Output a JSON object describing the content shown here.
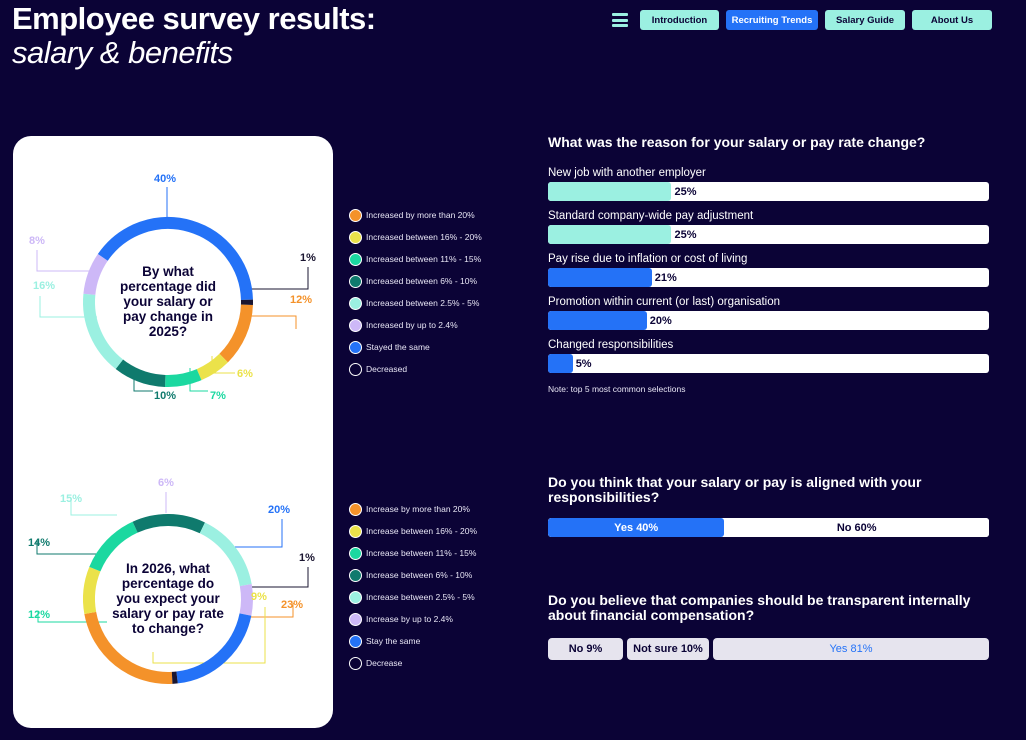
{
  "header": {
    "title_line1": "Employee survey results:",
    "title_line2": "salary & benefits"
  },
  "nav": {
    "menu_icon": "hamburger-menu-icon",
    "items": [
      {
        "label": "Introduction",
        "active": false
      },
      {
        "label": "Recruiting Trends",
        "active": true
      },
      {
        "label": "Salary Guide",
        "active": false
      },
      {
        "label": "About Us",
        "active": false
      }
    ]
  },
  "colors": {
    "background": "#0b0336",
    "accent_blue": "#2472f7",
    "accent_teal": "#9bf0e1",
    "orange": "#f4922a",
    "yellow": "#ebe24a",
    "green": "#1bd8a0",
    "dark_teal": "#0f7a6d",
    "light_teal": "#9bf0e1",
    "lavender": "#cdb8f7",
    "blue": "#2472f7",
    "navy": "#1a1530"
  },
  "chart_data": [
    {
      "type": "pie",
      "variant": "donut",
      "title": "By what percentage did your salary or pay change in 2025?",
      "categories": [
        "Increased by more than 20%",
        "Increased between 16% - 20%",
        "Increased between 11% - 15%",
        "Increased between 6% - 10%",
        "Increased between 2.5% - 5%",
        "Increased by up to 2.4%",
        "Stayed the same",
        "Decreased"
      ],
      "values": [
        12,
        6,
        7,
        10,
        16,
        8,
        40,
        1
      ],
      "data_labels": [
        "12%",
        "6%",
        "7%",
        "10%",
        "16%",
        "8%",
        "40%",
        "1%"
      ],
      "colors": [
        "#f4922a",
        "#ebe24a",
        "#1bd8a0",
        "#0f7a6d",
        "#9bf0e1",
        "#cdb8f7",
        "#2472f7",
        "#1a1530"
      ],
      "legend": "right"
    },
    {
      "type": "pie",
      "variant": "donut",
      "title": "In 2026, what percentage do you expect your salary or pay rate to change?",
      "categories": [
        "Increase by more than 20%",
        "Increase between 16% - 20%",
        "Increase between 11% - 15%",
        "Increase between 6% - 10%",
        "Increase between 2.5% - 5%",
        "Increase by up to 2.4%",
        "Stay the same",
        "Decrease"
      ],
      "values": [
        23,
        9,
        12,
        14,
        15,
        6,
        20,
        1
      ],
      "data_labels": [
        "23%",
        "9%",
        "12%",
        "14%",
        "15%",
        "6%",
        "20%",
        "1%"
      ],
      "colors": [
        "#f4922a",
        "#ebe24a",
        "#1bd8a0",
        "#0f7a6d",
        "#9bf0e1",
        "#cdb8f7",
        "#2472f7",
        "#1a1530"
      ],
      "legend": "right"
    },
    {
      "type": "bar",
      "orientation": "horizontal",
      "title": "What was the reason for your salary or pay rate change?",
      "categories": [
        "New job with another employer",
        "Standard company-wide pay adjustment",
        "Pay rise due to inflation or cost of living",
        "Promotion within current (or last) organisation",
        "Changed responsibilities"
      ],
      "values": [
        25,
        25,
        21,
        20,
        5
      ],
      "data_labels": [
        "25%",
        "25%",
        "21%",
        "20%",
        "5%"
      ],
      "colors": [
        "#9bf0e1",
        "#9bf0e1",
        "#2472f7",
        "#2472f7",
        "#2472f7"
      ],
      "xlim": [
        0,
        100
      ],
      "note": "Note: top 5 most common selections"
    },
    {
      "type": "bar",
      "variant": "stacked-100",
      "title": "Do you think that your salary or pay is aligned with your responsibilities?",
      "categories": [
        "Yes",
        "No"
      ],
      "values": [
        40,
        60
      ],
      "data_labels": [
        "Yes 40%",
        "No 60%"
      ]
    },
    {
      "type": "bar",
      "variant": "stacked-100",
      "title": "Do you believe that companies should be transparent internally about financial compensation?",
      "categories": [
        "No",
        "Not sure",
        "Yes"
      ],
      "values": [
        9,
        10,
        81
      ],
      "data_labels": [
        "No 9%",
        "Not sure 10%",
        "Yes 81%"
      ]
    }
  ]
}
